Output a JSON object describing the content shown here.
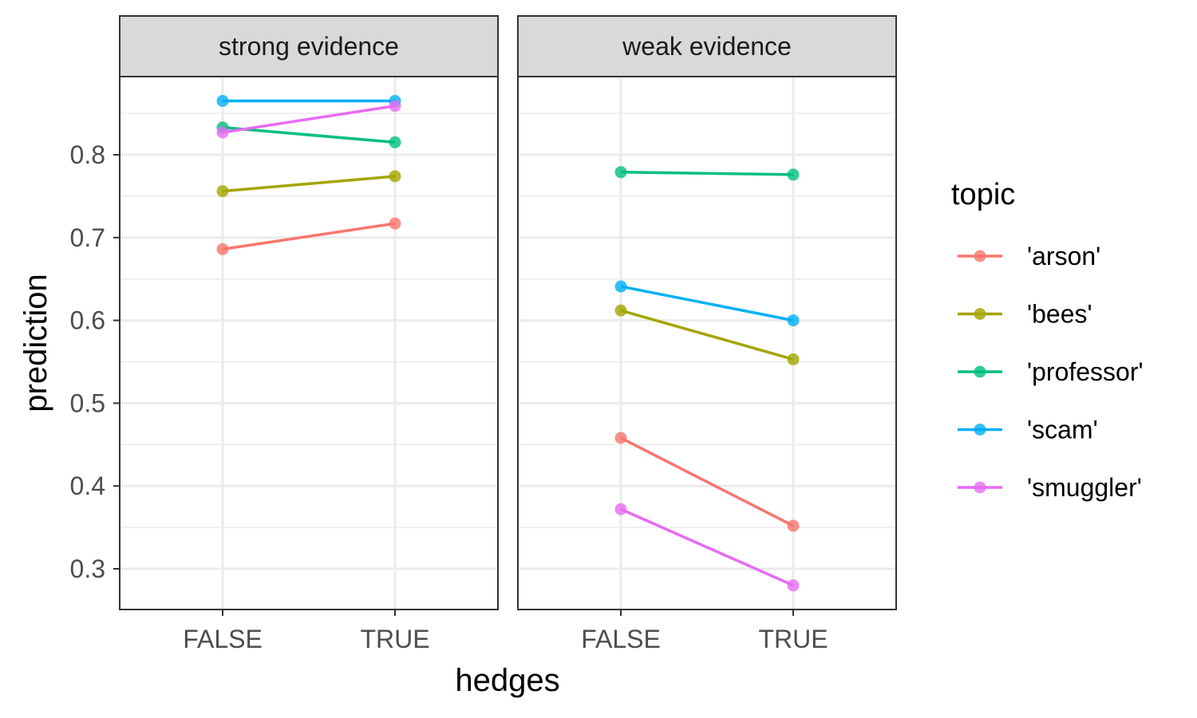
{
  "chart_data": {
    "type": "line",
    "xlabel": "hedges",
    "ylabel": "prediction",
    "categories": [
      "FALSE",
      "TRUE"
    ],
    "ylim": [
      0.25,
      0.89
    ],
    "y_ticks": [
      0.3,
      0.4,
      0.5,
      0.6,
      0.7,
      0.8
    ],
    "y_tick_labels": [
      "0.3",
      "0.4",
      "0.5",
      "0.6",
      "0.7",
      "0.8"
    ],
    "grid": true,
    "legend": {
      "title": "topic",
      "position": "right",
      "entries": [
        "'arson'",
        "'bees'",
        "'professor'",
        "'scam'",
        "'smuggler'"
      ]
    },
    "series_colors": {
      "'arson'": "#F8766D",
      "'bees'": "#A3A500",
      "'professor'": "#00BF7D",
      "'scam'": "#00B0F6",
      "'smuggler'": "#E76BF3"
    },
    "panels": [
      {
        "title": "strong evidence",
        "series": [
          {
            "name": "'arson'",
            "values": [
              0.686,
              0.717
            ]
          },
          {
            "name": "'bees'",
            "values": [
              0.756,
              0.774
            ]
          },
          {
            "name": "'professor'",
            "values": [
              0.833,
              0.815
            ]
          },
          {
            "name": "'scam'",
            "values": [
              0.865,
              0.865
            ]
          },
          {
            "name": "'smuggler'",
            "values": [
              0.827,
              0.859
            ]
          }
        ]
      },
      {
        "title": "weak evidence",
        "series": [
          {
            "name": "'arson'",
            "values": [
              0.458,
              0.352
            ]
          },
          {
            "name": "'bees'",
            "values": [
              0.612,
              0.553
            ]
          },
          {
            "name": "'professor'",
            "values": [
              0.779,
              0.776
            ]
          },
          {
            "name": "'scam'",
            "values": [
              0.641,
              0.6
            ]
          },
          {
            "name": "'smuggler'",
            "values": [
              0.372,
              0.28
            ]
          }
        ]
      }
    ]
  }
}
